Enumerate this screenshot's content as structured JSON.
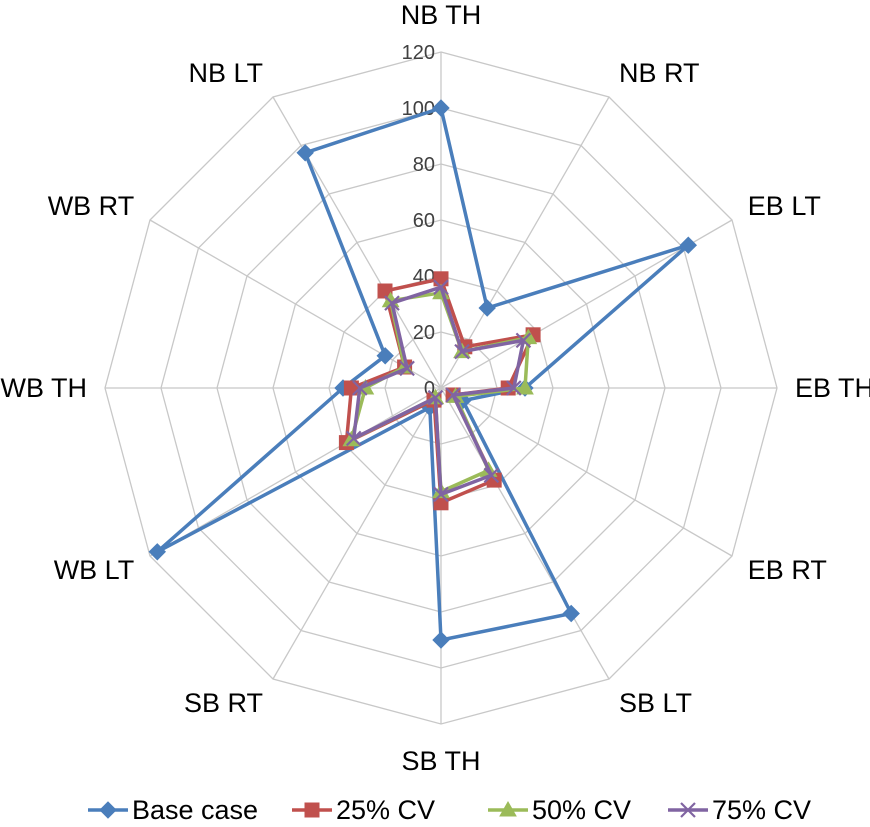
{
  "chart_data": {
    "type": "radar",
    "categories": [
      "NB TH",
      "NB RT",
      "EB LT",
      "EB TH",
      "EB RT",
      "SB LT",
      "SB TH",
      "SB RT",
      "WB LT",
      "WB TH",
      "WB RT",
      "NB LT"
    ],
    "rlim": [
      0,
      120
    ],
    "ticks": [
      "0",
      "20",
      "40",
      "60",
      "80",
      "100",
      "120"
    ],
    "grid": true,
    "legend_position": "bottom",
    "series": [
      {
        "name": "Base case",
        "color": "#4A7EBB",
        "marker": "diamond",
        "values": [
          100,
          33,
          102,
          30,
          9,
          93,
          90,
          8,
          117,
          35,
          23,
          97
        ]
      },
      {
        "name": "25% CV",
        "color": "#C0504D",
        "marker": "square",
        "values": [
          39,
          17,
          38,
          24,
          5,
          38,
          41,
          5,
          39,
          32,
          15,
          40
        ]
      },
      {
        "name": "50% CV",
        "color": "#9BBB59",
        "marker": "triangle",
        "values": [
          34,
          15,
          36,
          30,
          6,
          34,
          37,
          4,
          37,
          27,
          15,
          36
        ]
      },
      {
        "name": "75% CV",
        "color": "#8064A2",
        "marker": "x",
        "values": [
          36,
          15,
          34,
          26,
          5,
          36,
          38,
          4,
          36,
          29,
          14,
          35
        ]
      }
    ]
  }
}
